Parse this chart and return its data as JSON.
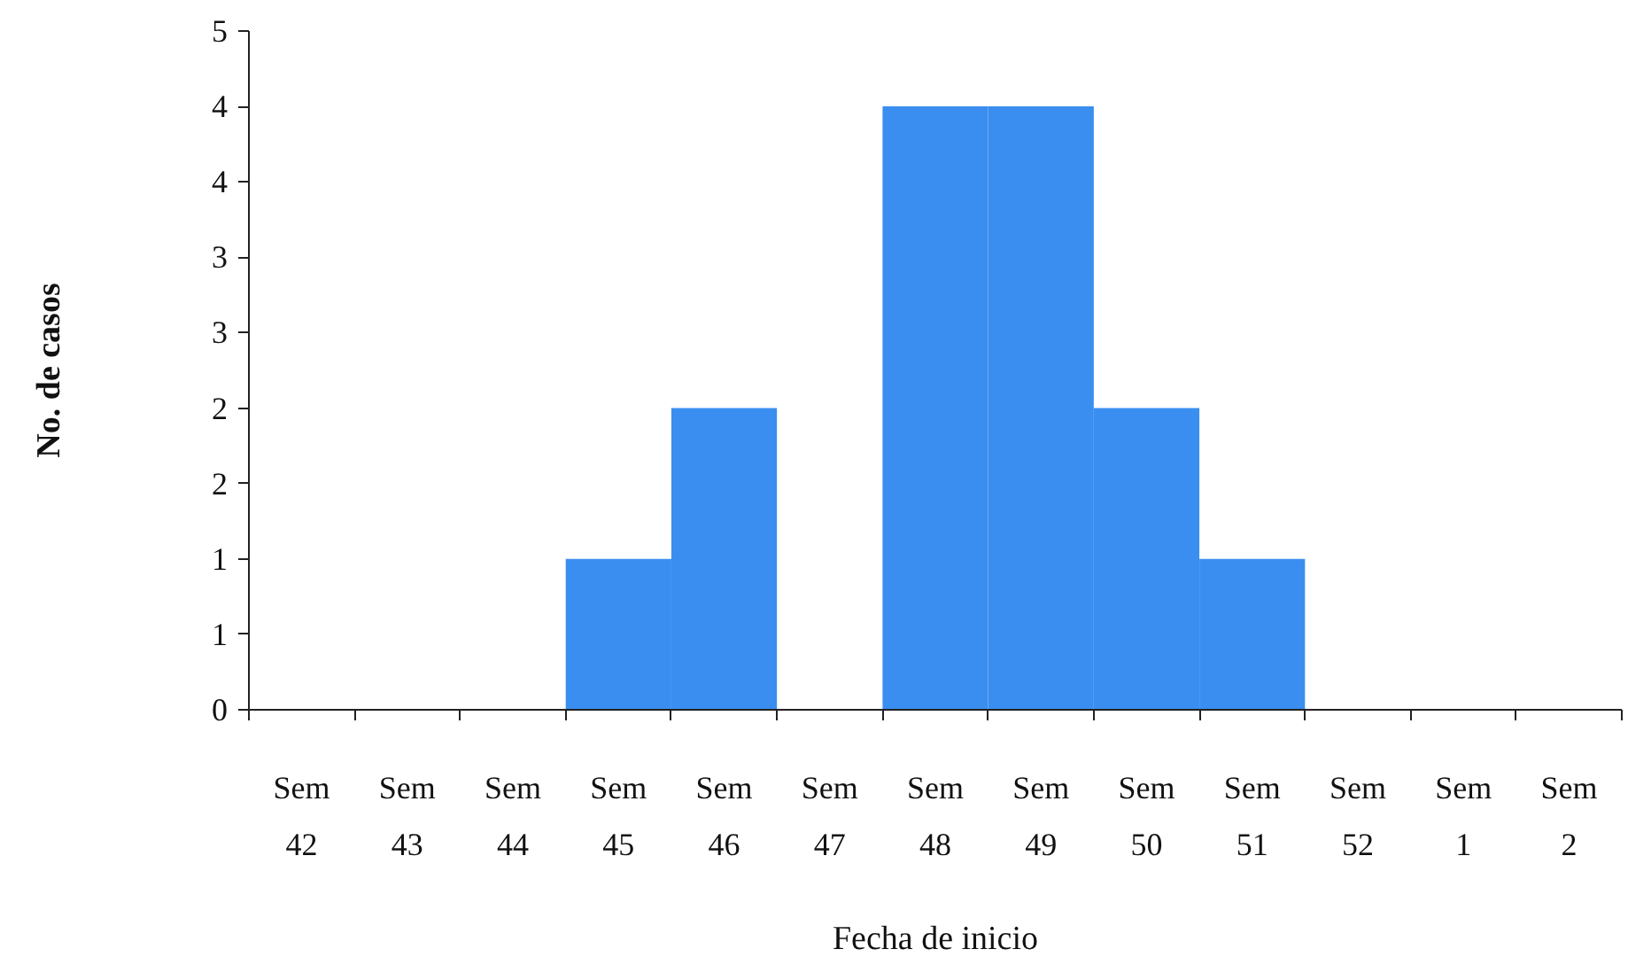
{
  "chart_data": {
    "type": "bar",
    "categories": [
      "Sem 42",
      "Sem 43",
      "Sem 44",
      "Sem 45",
      "Sem 46",
      "Sem 47",
      "Sem 48",
      "Sem 49",
      "Sem 50",
      "Sem 51",
      "Sem 52",
      "Sem 1",
      "Sem 2"
    ],
    "values": [
      0,
      0,
      0,
      1,
      2,
      0,
      4,
      4,
      2,
      1,
      0,
      0,
      0
    ],
    "color": "#3a8ef0",
    "ylim": [
      0,
      4.5
    ],
    "yticks": [
      0,
      {
        "value": 0.5,
        "label": "1"
      },
      1,
      {
        "value": 1.5,
        "label": "2"
      },
      2,
      {
        "value": 2.5,
        "label": "3"
      },
      3,
      {
        "value": 3.5,
        "label": "4"
      },
      4,
      {
        "value": 4.5,
        "label": "5"
      }
    ],
    "xlabel": "Fecha de inicio",
    "ylabel": "No. de casos"
  }
}
